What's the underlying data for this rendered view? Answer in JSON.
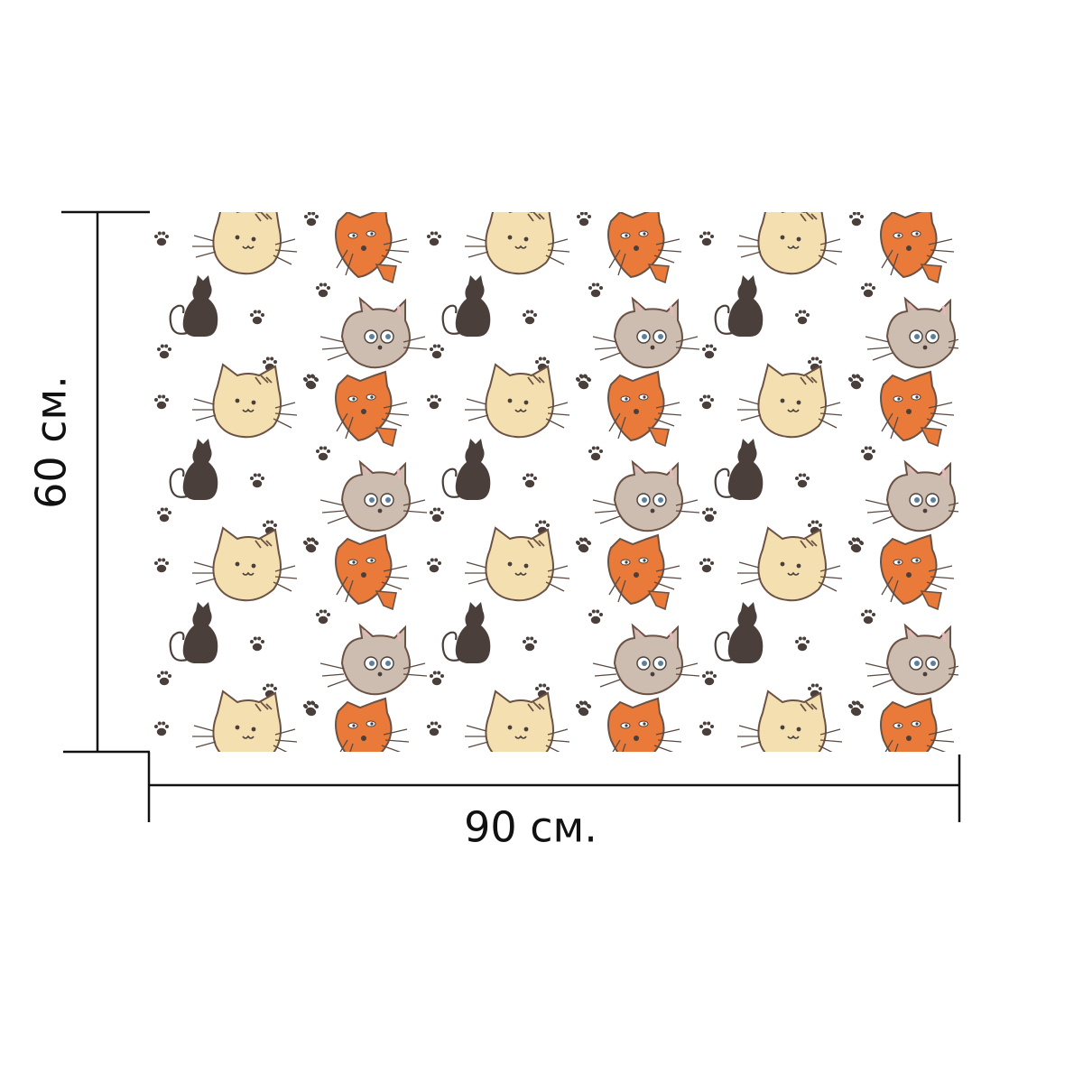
{
  "dimensions": {
    "height_label": "60 см.",
    "width_label": "90 см."
  },
  "pattern": {
    "motifs": [
      "beige-cat-head",
      "orange-cat-head",
      "grey-cat-head",
      "black-cat-silhouette",
      "paw-print"
    ],
    "colors": {
      "beige": "#f3dfb0",
      "orange": "#ea7a3a",
      "grey": "#cdbdb0",
      "dark": "#4a3f3b",
      "outline": "#5a4a42"
    }
  }
}
